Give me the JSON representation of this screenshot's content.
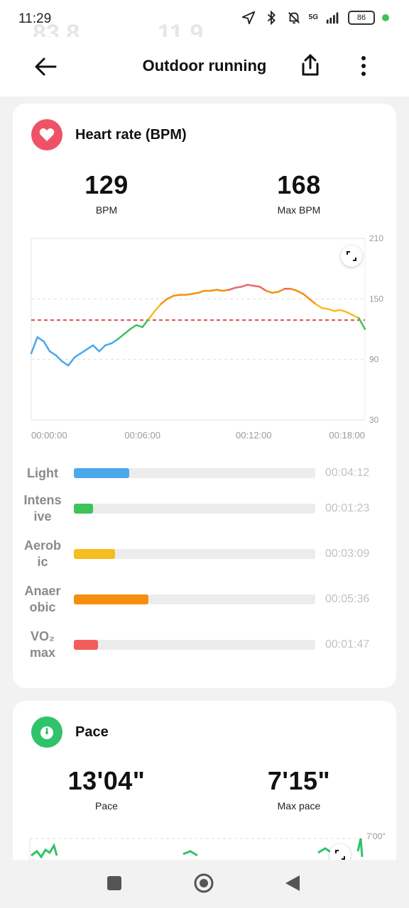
{
  "status_bar": {
    "time": "11:29",
    "battery": "86",
    "network": "5G",
    "ghost_values": [
      "83.8",
      "11.9"
    ]
  },
  "header": {
    "title": "Outdoor running",
    "back_icon": "arrow-left-icon",
    "share_icon": "share-icon",
    "more_icon": "more-vertical-icon"
  },
  "heart_rate": {
    "title": "Heart rate (BPM)",
    "icon": "heart-icon",
    "icon_color": "#ef5266",
    "avg_value": "129",
    "avg_label": "BPM",
    "max_value": "168",
    "max_label": "Max BPM",
    "zones": [
      {
        "name": "Light",
        "time": "00:04:12",
        "fraction": 0.23,
        "color": "#4aa8ec"
      },
      {
        "name": "Intens ive",
        "time": "00:01:23",
        "fraction": 0.08,
        "color": "#3dc35b"
      },
      {
        "name": "Aerob ic",
        "time": "00:03:09",
        "fraction": 0.17,
        "color": "#f5bd1f"
      },
      {
        "name": "Anaer obic",
        "time": "00:05:36",
        "fraction": 0.31,
        "color": "#f5900f"
      },
      {
        "name": "VO₂ max",
        "time": "00:01:47",
        "fraction": 0.1,
        "color": "#f25c5c"
      }
    ]
  },
  "pace": {
    "title": "Pace",
    "icon": "stopwatch-icon",
    "icon_color": "#2fc36a",
    "avg_value": "13'04\"",
    "avg_label": "Pace",
    "max_value": "7'15\"",
    "max_label": "Max pace",
    "axis_top_label": "7'00\""
  },
  "chart_data": {
    "type": "line",
    "xlabel": "",
    "ylabel": "",
    "x_tick_labels": [
      "00:00:00",
      "00:06:00",
      "00:12:00",
      "00:18:00"
    ],
    "y_tick_labels": [
      "210",
      "150",
      "90",
      "30"
    ],
    "ylim": [
      30,
      210
    ],
    "xlim": [
      0,
      1080
    ],
    "reference_line": 129,
    "reference_color": "#e04848",
    "grid": true,
    "series": [
      {
        "x": [
          0,
          20,
          40,
          60,
          80,
          100,
          120,
          140,
          160,
          180,
          200,
          220,
          240,
          260,
          280,
          300,
          320,
          340,
          360,
          380,
          400,
          420,
          440,
          460,
          480,
          500,
          520,
          540,
          560,
          580,
          600,
          620,
          640,
          660,
          680,
          700,
          720,
          740,
          760,
          780,
          800,
          820,
          840,
          860,
          880,
          900,
          920,
          940,
          960,
          980,
          1000,
          1020,
          1040,
          1060,
          1080
        ],
        "values": [
          96,
          112,
          108,
          98,
          94,
          88,
          84,
          92,
          96,
          100,
          104,
          98,
          104,
          106,
          110,
          115,
          120,
          124,
          122,
          130,
          138,
          145,
          150,
          153,
          154,
          154,
          155,
          156,
          158,
          158,
          159,
          158,
          159,
          161,
          162,
          164,
          163,
          162,
          158,
          156,
          157,
          160,
          160,
          158,
          155,
          150,
          145,
          141,
          140,
          138,
          139,
          137,
          134,
          131,
          120
        ]
      }
    ]
  }
}
